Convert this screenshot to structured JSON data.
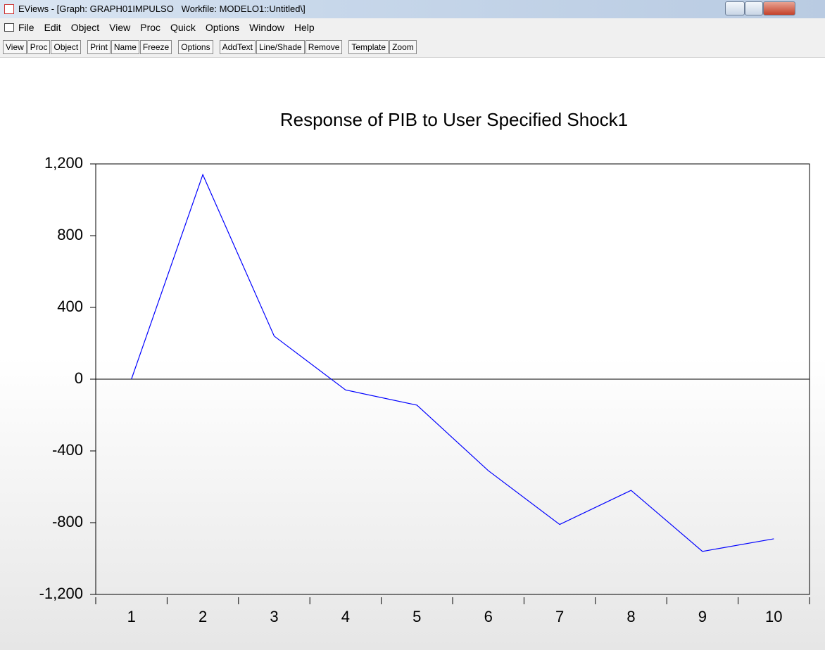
{
  "window": {
    "title": "EViews - [Graph: GRAPH01IMPULSO   Workfile: MODELO1::Untitled\\]"
  },
  "menu": [
    "File",
    "Edit",
    "Object",
    "View",
    "Proc",
    "Quick",
    "Options",
    "Window",
    "Help"
  ],
  "toolbar": [
    [
      "View",
      "Proc",
      "Object"
    ],
    [
      "Print",
      "Name",
      "Freeze"
    ],
    [
      "Options"
    ],
    [
      "AddText",
      "Line/Shade",
      "Remove"
    ],
    [
      "Template",
      "Zoom"
    ]
  ],
  "chart_data": {
    "type": "line",
    "title": "Response of PIB to User Specified Shock1",
    "categories": [
      "1",
      "2",
      "3",
      "4",
      "5",
      "6",
      "7",
      "8",
      "9",
      "10"
    ],
    "series": [
      {
        "name": "PIB",
        "color": "#0000ff",
        "values": [
          0,
          1140,
          240,
          -60,
          -145,
          -510,
          -810,
          -620,
          -960,
          -890
        ]
      }
    ],
    "ylim": [
      -1200,
      1200
    ],
    "yticks": [
      {
        "value": -1200,
        "label": "-1,200"
      },
      -800,
      -400,
      0,
      400,
      800,
      {
        "value": 1200,
        "label": "1,200"
      }
    ],
    "zero_line": true,
    "legend": false
  }
}
